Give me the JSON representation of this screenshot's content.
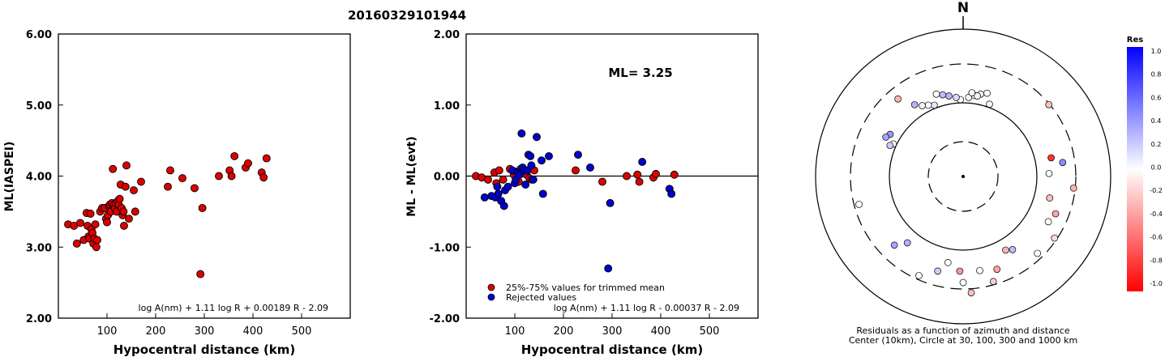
{
  "title": "20160329101944",
  "chart_data": [
    {
      "type": "scatter",
      "xlabel": "Hypocentral distance (km)",
      "ylabel": "ML(IASPEI)",
      "xlim": [
        0,
        600
      ],
      "ylim": [
        2.0,
        6.0
      ],
      "xticks": [
        "100",
        "200",
        "300",
        "400",
        "500"
      ],
      "yticks": [
        "2.00",
        "3.00",
        "4.00",
        "5.00",
        "6.00"
      ],
      "formula": "log A(nm) + 1.11 log R + 0.00189 R - 2.09",
      "grid": false,
      "series": [
        {
          "color": "#dd0000",
          "points": [
            [
              20,
              3.32
            ],
            [
              32,
              3.3
            ],
            [
              38,
              3.05
            ],
            [
              45,
              3.34
            ],
            [
              52,
              3.1
            ],
            [
              58,
              3.48
            ],
            [
              60,
              3.3
            ],
            [
              62,
              3.15
            ],
            [
              64,
              3.12
            ],
            [
              66,
              3.47
            ],
            [
              68,
              3.25
            ],
            [
              70,
              3.2
            ],
            [
              72,
              3.05
            ],
            [
              74,
              3.12
            ],
            [
              76,
              3.32
            ],
            [
              78,
              3.0
            ],
            [
              80,
              3.1
            ],
            [
              86,
              3.5
            ],
            [
              90,
              3.55
            ],
            [
              95,
              3.55
            ],
            [
              98,
              3.4
            ],
            [
              100,
              3.35
            ],
            [
              102,
              3.45
            ],
            [
              104,
              3.58
            ],
            [
              106,
              3.6
            ],
            [
              108,
              3.5
            ],
            [
              110,
              3.62
            ],
            [
              112,
              4.1
            ],
            [
              114,
              3.6
            ],
            [
              116,
              3.55
            ],
            [
              118,
              3.62
            ],
            [
              120,
              3.5
            ],
            [
              122,
              3.65
            ],
            [
              124,
              3.6
            ],
            [
              126,
              3.68
            ],
            [
              128,
              3.88
            ],
            [
              130,
              3.55
            ],
            [
              132,
              3.45
            ],
            [
              134,
              3.5
            ],
            [
              135,
              3.3
            ],
            [
              138,
              3.85
            ],
            [
              140,
              4.15
            ],
            [
              145,
              3.4
            ],
            [
              155,
              3.8
            ],
            [
              158,
              3.5
            ],
            [
              170,
              3.92
            ],
            [
              225,
              3.85
            ],
            [
              230,
              4.08
            ],
            [
              255,
              3.97
            ],
            [
              280,
              3.83
            ],
            [
              292,
              2.62
            ],
            [
              296,
              3.55
            ],
            [
              330,
              4.0
            ],
            [
              352,
              4.08
            ],
            [
              356,
              4.0
            ],
            [
              362,
              4.28
            ],
            [
              385,
              4.12
            ],
            [
              390,
              4.18
            ],
            [
              418,
              4.05
            ],
            [
              422,
              3.98
            ],
            [
              428,
              4.25
            ]
          ]
        }
      ]
    },
    {
      "type": "scatter",
      "xlabel": "Hypocentral distance (km)",
      "ylabel": "ML - ML(evt)",
      "xlim": [
        0,
        600
      ],
      "ylim": [
        -2.0,
        2.0
      ],
      "xticks": [
        "100",
        "200",
        "300",
        "400",
        "500"
      ],
      "yticks": [
        "-2.00",
        "-1.00",
        "0.00",
        "1.00",
        "2.00"
      ],
      "annotation": "ML= 3.25",
      "formula": "log A(nm) + 1.11 log R - 0.00037 R - 2.09",
      "reference_line": 0.0,
      "legend_position": "bottom-left",
      "series": [
        {
          "name": "25%-75% values for trimmed mean",
          "color": "#dd0000",
          "points": [
            [
              20,
              0.0
            ],
            [
              32,
              -0.02
            ],
            [
              45,
              -0.05
            ],
            [
              58,
              0.05
            ],
            [
              62,
              -0.1
            ],
            [
              68,
              0.08
            ],
            [
              76,
              -0.05
            ],
            [
              90,
              0.1
            ],
            [
              98,
              0.02
            ],
            [
              104,
              0.06
            ],
            [
              108,
              -0.08
            ],
            [
              112,
              0.1
            ],
            [
              118,
              0.04
            ],
            [
              124,
              0.02
            ],
            [
              130,
              -0.03
            ],
            [
              135,
              -0.05
            ],
            [
              140,
              0.08
            ],
            [
              225,
              0.08
            ],
            [
              280,
              -0.08
            ],
            [
              330,
              0.0
            ],
            [
              352,
              0.02
            ],
            [
              356,
              -0.08
            ],
            [
              385,
              -0.02
            ],
            [
              390,
              0.03
            ],
            [
              428,
              0.02
            ]
          ]
        },
        {
          "name": "Rejected values",
          "color": "#0000cc",
          "points": [
            [
              38,
              -0.3
            ],
            [
              52,
              -0.28
            ],
            [
              60,
              -0.3
            ],
            [
              64,
              -0.15
            ],
            [
              66,
              -0.25
            ],
            [
              72,
              -0.35
            ],
            [
              78,
              -0.42
            ],
            [
              80,
              -0.2
            ],
            [
              86,
              -0.15
            ],
            [
              95,
              0.08
            ],
            [
              100,
              -0.1
            ],
            [
              102,
              -0.05
            ],
            [
              106,
              0.05
            ],
            [
              110,
              0.02
            ],
            [
              114,
              0.6
            ],
            [
              116,
              0.12
            ],
            [
              120,
              0.08
            ],
            [
              122,
              -0.12
            ],
            [
              126,
              0.08
            ],
            [
              128,
              0.3
            ],
            [
              132,
              0.28
            ],
            [
              134,
              0.15
            ],
            [
              138,
              -0.05
            ],
            [
              145,
              0.55
            ],
            [
              155,
              0.22
            ],
            [
              158,
              -0.25
            ],
            [
              170,
              0.28
            ],
            [
              230,
              0.3
            ],
            [
              255,
              0.12
            ],
            [
              292,
              -1.3
            ],
            [
              296,
              -0.38
            ],
            [
              362,
              0.2
            ],
            [
              418,
              -0.18
            ],
            [
              422,
              -0.25
            ]
          ]
        }
      ]
    },
    {
      "type": "scatter",
      "north_label": "N",
      "caption_line1": "Residuals as a function of azimuth and distance",
      "caption_line2": "Center (10km), Circle at 30, 100, 300 and 1000 km",
      "colorbar_title": "Res",
      "colorbar_ticks": [
        "1.0",
        "0.8",
        "0.6",
        "0.4",
        "0.2",
        "0.0",
        "-0.2",
        "-0.4",
        "-0.6",
        "-0.8",
        "-1.0"
      ],
      "rings_km": [
        10,
        30,
        100,
        300,
        1000
      ],
      "points": [
        {
          "az": 358,
          "res": 0.0
        },
        {
          "az": 4,
          "res": 0.02
        },
        {
          "az": 8,
          "res": 0.0
        },
        {
          "az": 12,
          "res": 0.05
        },
        {
          "az": 16,
          "res": 0.0
        },
        {
          "az": 20,
          "res": -0.05
        },
        {
          "az": 355,
          "res": 0.15
        },
        {
          "az": 350,
          "res": 0.3
        },
        {
          "az": 346,
          "res": 0.25
        },
        {
          "az": 342,
          "res": 0.0
        },
        {
          "az": 338,
          "res": 0.1
        },
        {
          "az": 334,
          "res": 0.0
        },
        {
          "az": 330,
          "res": 0.05
        },
        {
          "az": 300,
          "res": 0.4
        },
        {
          "az": 297,
          "res": 0.35
        },
        {
          "az": 295,
          "res": 0.0
        },
        {
          "az": 293,
          "res": 0.2
        },
        {
          "az": 10,
          "res": 0.02
        },
        {
          "az": 6,
          "res": -0.05
        },
        {
          "az": 326,
          "res": 0.3
        },
        {
          "az": 320,
          "res": -0.3
        },
        {
          "az": 50,
          "res": -0.25
        },
        {
          "az": 78,
          "res": -0.8
        },
        {
          "az": 82,
          "res": 0.45
        },
        {
          "az": 96,
          "res": -0.3
        },
        {
          "az": 104,
          "res": -0.25
        },
        {
          "az": 112,
          "res": -0.35
        },
        {
          "az": 124,
          "res": -0.15
        },
        {
          "az": 146,
          "res": 0.25
        },
        {
          "az": 160,
          "res": -0.35
        },
        {
          "az": 164,
          "res": -0.2
        },
        {
          "az": 190,
          "res": 0.0
        },
        {
          "az": 195,
          "res": 0.2
        },
        {
          "az": 204,
          "res": 0.0
        },
        {
          "az": 220,
          "res": 0.3
        },
        {
          "az": 225,
          "res": 0.35
        },
        {
          "az": 255,
          "res": 0.0
        },
        {
          "az": 88,
          "res": 0.0
        },
        {
          "az": 118,
          "res": 0.0
        },
        {
          "az": 136,
          "res": 0.0
        },
        {
          "az": 150,
          "res": -0.3
        },
        {
          "az": 170,
          "res": 0.0
        },
        {
          "az": 180,
          "res": 0.0
        },
        {
          "az": 176,
          "res": -0.25
        },
        {
          "az": 182,
          "res": -0.4
        }
      ]
    }
  ]
}
